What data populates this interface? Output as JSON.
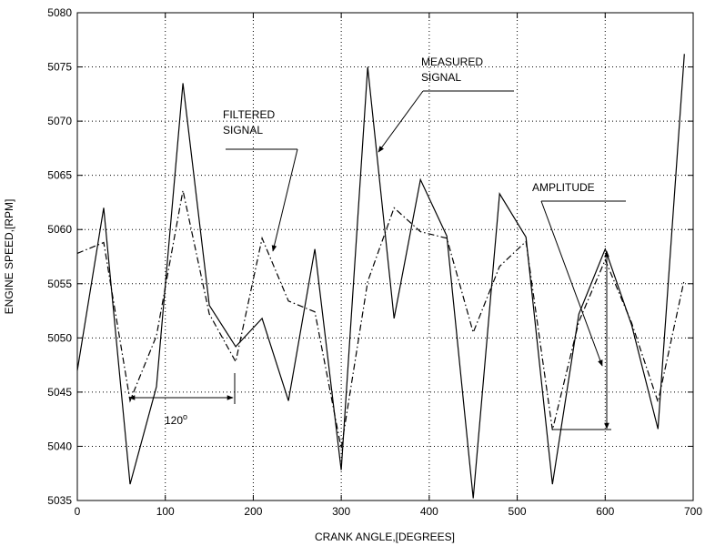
{
  "chart_data": {
    "type": "line",
    "title": "",
    "xlabel": "CRANK ANGLE,[DEGREES]",
    "ylabel": "ENGINE SPEED,[RPM]",
    "xlim": [
      0,
      700
    ],
    "ylim": [
      5035,
      5080
    ],
    "x_ticks": [
      0,
      100,
      200,
      300,
      400,
      500,
      600,
      700
    ],
    "y_ticks": [
      5035,
      5040,
      5045,
      5050,
      5055,
      5060,
      5065,
      5070,
      5075,
      5080
    ],
    "grid": true,
    "series": [
      {
        "name": "MEASURED SIGNAL",
        "style": "solid",
        "color": "#000000",
        "x": [
          0,
          30,
          60,
          90,
          120,
          150,
          180,
          210,
          240,
          270,
          300,
          330,
          360,
          390,
          420,
          450,
          480,
          510,
          540,
          570,
          600,
          630,
          660,
          690
        ],
        "y": [
          5047,
          5062,
          5036.5,
          5045.5,
          5073.5,
          5053,
          5049.2,
          5051.8,
          5044.2,
          5058.2,
          5037.8,
          5075,
          5051.8,
          5064.6,
          5059.4,
          5035.2,
          5063.3,
          5059.3,
          5036.5,
          5052.2,
          5058.2,
          5051.2,
          5041.6,
          5076.2
        ]
      },
      {
        "name": "FILTERED SIGNAL",
        "style": "dashdot",
        "color": "#000000",
        "x": [
          0,
          30,
          60,
          90,
          120,
          150,
          180,
          210,
          240,
          270,
          300,
          330,
          360,
          390,
          420,
          450,
          480,
          510,
          540,
          570,
          600,
          630,
          660,
          690
        ],
        "y": [
          5057.8,
          5058.8,
          5044.2,
          5050.2,
          5063.6,
          5052.2,
          5047.8,
          5059.2,
          5053.4,
          5052.4,
          5039.8,
          5055.2,
          5062,
          5059.8,
          5059.2,
          5050.5,
          5056.6,
          5058.9,
          5041.5,
          5051.5,
          5057.2,
          5051.4,
          5044.1,
          5055.4
        ]
      }
    ],
    "annotations": {
      "measured_line1": "MEASURED",
      "measured_line2": "SIGNAL",
      "filtered_line1": "FILTERED",
      "filtered_line2": "SIGNAL",
      "amplitude": "AMPLITUDE",
      "period_label": "120",
      "period_superscript": "o"
    }
  }
}
